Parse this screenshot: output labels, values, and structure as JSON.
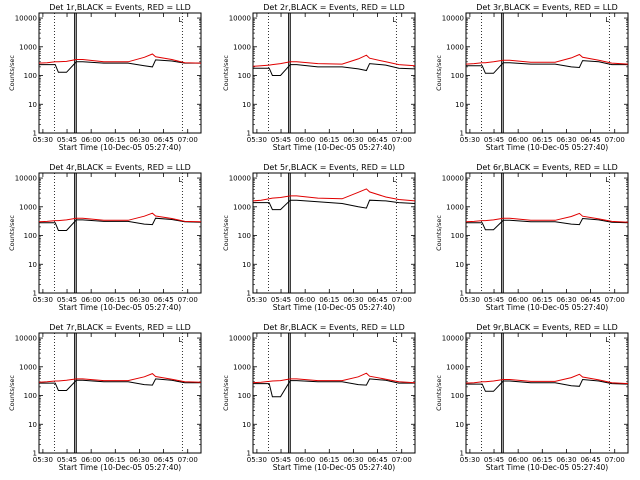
{
  "colors": {
    "events": "#000000",
    "lld": "#e00000",
    "frame": "#000000",
    "marker": "#000000"
  },
  "common": {
    "xlabel": "Start Time (10-Dec-05 05:27:40)",
    "ylabel": "Counts/sec",
    "x_ticks": [
      "05:30",
      "05:45",
      "06:00",
      "06:15",
      "06:30",
      "06:45",
      "07:00"
    ],
    "y_ticks": [
      "1",
      "10",
      "100",
      "1000",
      "10000"
    ],
    "corner_mark": "L"
  },
  "chart_data": [
    {
      "type": "line",
      "title": "Det 1r,BLACK = Events, RED = LLD",
      "xlabel": "Start Time (10-Dec-05 05:27:40)",
      "ylabel": "Counts/sec",
      "xlim": [
        0,
        100
      ],
      "ylim": [
        1,
        15000
      ],
      "yscale": "log",
      "x": [
        0,
        5,
        10,
        12,
        17,
        23,
        27,
        40,
        55,
        65,
        70,
        72,
        82,
        90,
        100
      ],
      "series": [
        {
          "name": "Events",
          "values": [
            240,
            240,
            240,
            130,
            130,
            300,
            300,
            270,
            270,
            220,
            200,
            350,
            320,
            270,
            270
          ]
        },
        {
          "name": "LLD",
          "values": [
            270,
            280,
            300,
            300,
            310,
            360,
            360,
            300,
            300,
            430,
            560,
            450,
            360,
            280,
            270
          ]
        }
      ]
    },
    {
      "type": "line",
      "title": "Det 2r,BLACK = Events, RED = LLD",
      "xlabel": "Start Time (10-Dec-05 05:27:40)",
      "ylabel": "Counts/sec",
      "xlim": [
        0,
        100
      ],
      "ylim": [
        1,
        15000
      ],
      "yscale": "log",
      "x": [
        0,
        5,
        10,
        12,
        17,
        23,
        27,
        40,
        55,
        65,
        70,
        72,
        82,
        90,
        100
      ],
      "series": [
        {
          "name": "Events",
          "values": [
            180,
            180,
            180,
            100,
            100,
            240,
            240,
            200,
            200,
            170,
            150,
            260,
            230,
            180,
            170
          ]
        },
        {
          "name": "LLD",
          "values": [
            210,
            220,
            230,
            240,
            260,
            300,
            300,
            260,
            250,
            380,
            510,
            400,
            300,
            240,
            220
          ]
        }
      ]
    },
    {
      "type": "line",
      "title": "Det 3r,BLACK = Events, RED = LLD",
      "xlabel": "Start Time (10-Dec-05 05:27:40)",
      "ylabel": "Counts/sec",
      "xlim": [
        0,
        100
      ],
      "ylim": [
        1,
        15000
      ],
      "yscale": "log",
      "x": [
        0,
        5,
        10,
        12,
        17,
        23,
        27,
        40,
        55,
        65,
        70,
        72,
        82,
        90,
        100
      ],
      "series": [
        {
          "name": "Events",
          "values": [
            220,
            220,
            220,
            120,
            120,
            280,
            280,
            250,
            250,
            200,
            190,
            330,
            300,
            240,
            240
          ]
        },
        {
          "name": "LLD",
          "values": [
            250,
            260,
            280,
            280,
            300,
            340,
            340,
            290,
            290,
            410,
            540,
            430,
            340,
            270,
            250
          ]
        }
      ]
    },
    {
      "type": "line",
      "title": "Det 4r,BLACK = Events, RED = LLD",
      "xlabel": "Start Time (10-Dec-05 05:27:40)",
      "ylabel": "Counts/sec",
      "xlim": [
        0,
        100
      ],
      "ylim": [
        1,
        15000
      ],
      "yscale": "log",
      "x": [
        0,
        5,
        10,
        12,
        17,
        23,
        27,
        40,
        55,
        65,
        70,
        72,
        82,
        90,
        100
      ],
      "series": [
        {
          "name": "Events",
          "values": [
            280,
            280,
            280,
            150,
            150,
            350,
            350,
            310,
            310,
            250,
            240,
            400,
            360,
            300,
            290
          ]
        },
        {
          "name": "LLD",
          "values": [
            300,
            310,
            330,
            330,
            350,
            400,
            400,
            340,
            340,
            470,
            600,
            480,
            390,
            310,
            300
          ]
        }
      ]
    },
    {
      "type": "line",
      "title": "Det 5r,BLACK = Events, RED = LLD",
      "xlabel": "Start Time (10-Dec-05 05:27:40)",
      "ylabel": "Counts/sec",
      "xlim": [
        0,
        100
      ],
      "ylim": [
        1,
        15000
      ],
      "yscale": "log",
      "x": [
        0,
        5,
        10,
        12,
        17,
        23,
        27,
        40,
        55,
        65,
        70,
        72,
        82,
        90,
        100
      ],
      "series": [
        {
          "name": "Events",
          "values": [
            1400,
            1400,
            1400,
            800,
            800,
            1700,
            1700,
            1500,
            1300,
            1000,
            900,
            1700,
            1600,
            1400,
            1300
          ]
        },
        {
          "name": "LLD",
          "values": [
            1600,
            1700,
            1900,
            2000,
            2100,
            2400,
            2400,
            2000,
            1900,
            3200,
            4200,
            3300,
            2200,
            1800,
            1600
          ]
        }
      ]
    },
    {
      "type": "line",
      "title": "Det 6r,BLACK = Events, RED = LLD",
      "xlabel": "Start Time (10-Dec-05 05:27:40)",
      "ylabel": "Counts/sec",
      "xlim": [
        0,
        100
      ],
      "ylim": [
        1,
        15000
      ],
      "yscale": "log",
      "x": [
        0,
        5,
        10,
        12,
        17,
        23,
        27,
        40,
        55,
        65,
        70,
        72,
        82,
        90,
        100
      ],
      "series": [
        {
          "name": "Events",
          "values": [
            280,
            280,
            280,
            160,
            160,
            340,
            340,
            300,
            300,
            250,
            240,
            390,
            350,
            290,
            280
          ]
        },
        {
          "name": "LLD",
          "values": [
            300,
            310,
            330,
            330,
            350,
            400,
            400,
            340,
            340,
            460,
            590,
            470,
            380,
            310,
            290
          ]
        }
      ]
    },
    {
      "type": "line",
      "title": "Det 7r,BLACK = Events, RED = LLD",
      "xlabel": "Start Time (10-Dec-05 05:27:40)",
      "ylabel": "Counts/sec",
      "xlim": [
        0,
        100
      ],
      "ylim": [
        1,
        15000
      ],
      "yscale": "log",
      "x": [
        0,
        5,
        10,
        12,
        17,
        23,
        27,
        40,
        55,
        65,
        70,
        72,
        82,
        90,
        100
      ],
      "series": [
        {
          "name": "Events",
          "values": [
            270,
            270,
            270,
            150,
            150,
            340,
            340,
            300,
            300,
            240,
            230,
            380,
            340,
            280,
            280
          ]
        },
        {
          "name": "LLD",
          "values": [
            290,
            300,
            320,
            320,
            340,
            380,
            380,
            330,
            330,
            450,
            580,
            460,
            370,
            300,
            290
          ]
        }
      ]
    },
    {
      "type": "line",
      "title": "Det 8r,BLACK = Events, RED = LLD",
      "xlabel": "Start Time (10-Dec-05 05:27:40)",
      "ylabel": "Counts/sec",
      "xlim": [
        0,
        100
      ],
      "ylim": [
        1,
        15000
      ],
      "yscale": "log",
      "x": [
        0,
        5,
        10,
        12,
        17,
        23,
        27,
        40,
        55,
        65,
        70,
        72,
        82,
        90,
        100
      ],
      "series": [
        {
          "name": "Events",
          "values": [
            260,
            260,
            260,
            90,
            90,
            330,
            330,
            300,
            300,
            240,
            230,
            380,
            340,
            270,
            270
          ]
        },
        {
          "name": "LLD",
          "values": [
            280,
            290,
            310,
            320,
            330,
            380,
            380,
            330,
            330,
            450,
            600,
            470,
            370,
            300,
            280
          ]
        }
      ]
    },
    {
      "type": "line",
      "title": "Det 9r,BLACK = Events, RED = LLD",
      "xlabel": "Start Time (10-Dec-05 05:27:40)",
      "ylabel": "Counts/sec",
      "xlim": [
        0,
        100
      ],
      "ylim": [
        1,
        15000
      ],
      "yscale": "log",
      "x": [
        0,
        5,
        10,
        12,
        17,
        23,
        27,
        40,
        55,
        65,
        70,
        72,
        82,
        90,
        100
      ],
      "series": [
        {
          "name": "Events",
          "values": [
            250,
            250,
            250,
            140,
            140,
            320,
            320,
            280,
            280,
            220,
            210,
            360,
            320,
            260,
            250
          ]
        },
        {
          "name": "LLD",
          "values": [
            270,
            280,
            300,
            300,
            320,
            360,
            360,
            310,
            310,
            420,
            550,
            440,
            350,
            280,
            260
          ]
        }
      ]
    }
  ],
  "markers": {
    "double_line_x": [
      22,
      23
    ],
    "dotted_line_x": [
      9.6,
      88.5
    ],
    "time_offset_x": [
      2.4,
      17.3,
      32.2,
      47.1,
      62.0,
      76.9,
      91.8
    ]
  }
}
